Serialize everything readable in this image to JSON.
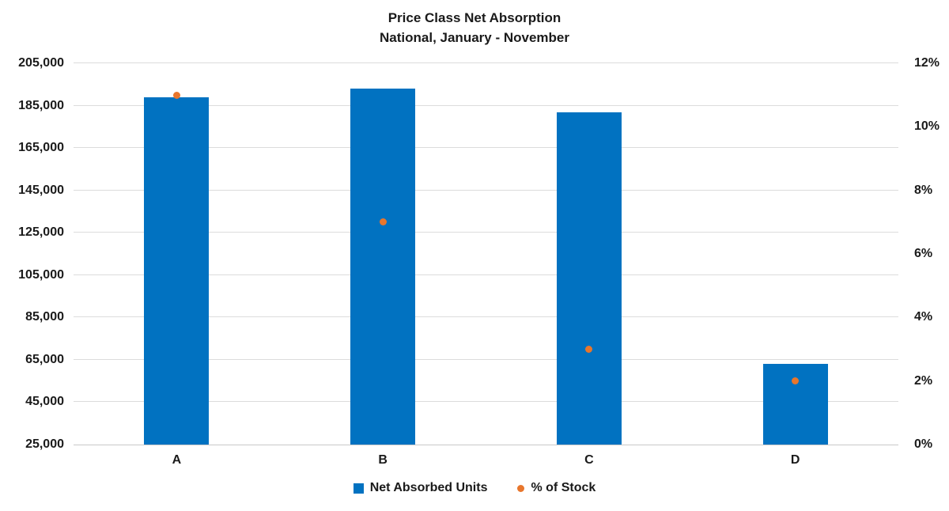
{
  "chart": {
    "title": "Price Class Net Absorption",
    "subtitle": "National, January - November"
  },
  "chart_data": {
    "type": "bar",
    "categories": [
      "A",
      "B",
      "C",
      "D"
    ],
    "series": [
      {
        "name": "Net Absorbed Units",
        "type": "bar",
        "axis": "left",
        "values": [
          189000,
          193000,
          182000,
          63000
        ],
        "color": "#0172C1"
      },
      {
        "name": "% of Stock",
        "type": "scatter",
        "axis": "right",
        "values": [
          11,
          7,
          3,
          2
        ],
        "color": "#E8762C"
      }
    ],
    "title": "Price Class Net Absorption",
    "subtitle": "National, January - November",
    "left_axis": {
      "label": "",
      "min": 25000,
      "max": 205000,
      "step": 20000,
      "tick_labels": [
        "25,000",
        "45,000",
        "65,000",
        "85,000",
        "105,000",
        "125,000",
        "145,000",
        "165,000",
        "185,000",
        "205,000"
      ]
    },
    "right_axis": {
      "label": "",
      "min": 0,
      "max": 12,
      "step": 2,
      "tick_labels": [
        "0%",
        "2%",
        "4%",
        "6%",
        "8%",
        "10%",
        "12%"
      ]
    },
    "grid": true,
    "grid_color": "#dcdcdc",
    "legend_position": "bottom",
    "legend": [
      {
        "label": "Net Absorbed Units",
        "marker": "square",
        "color": "#0172C1"
      },
      {
        "label": "% of Stock",
        "marker": "circle",
        "color": "#E8762C"
      }
    ]
  }
}
